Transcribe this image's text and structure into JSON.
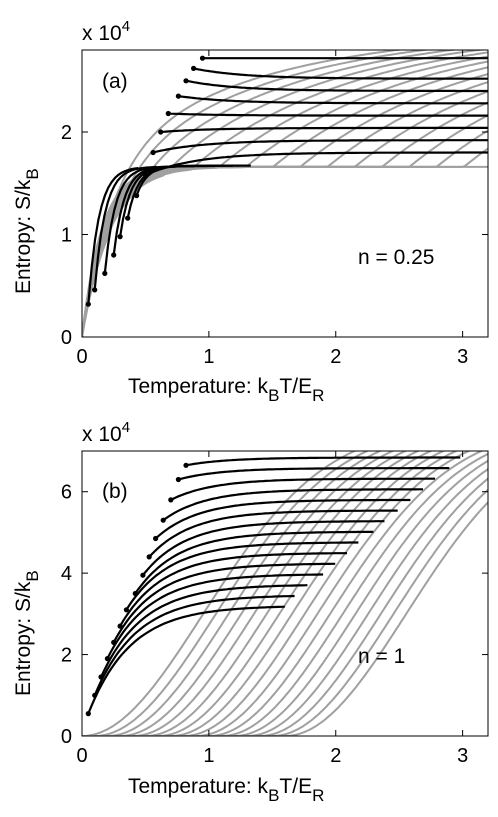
{
  "chart_data": [
    {
      "type": "line",
      "panel_label": "(a)",
      "annotation": "n = 0.25",
      "xlabel": "Temperature: k",
      "xlabel_sub1": "B",
      "xlabel_mid": "T/E",
      "xlabel_sub2": "R",
      "ylabel": "Entropy: S/k",
      "ylabel_sub": "B",
      "multiplier": "x 10",
      "multiplier_exp": "4",
      "xlim": [
        0,
        3.2
      ],
      "ylim": [
        0,
        2.8
      ],
      "xticks": [
        0,
        1,
        2,
        3
      ],
      "yticks": [
        0,
        1,
        2
      ],
      "gray_family": {
        "count": 16,
        "shift_step": 0.215,
        "form": "plateau-then-rise"
      },
      "black_family": {
        "count": 15,
        "start_points": [
          [
            0.05,
            0.32
          ],
          [
            0.1,
            0.46
          ],
          [
            0.18,
            0.62
          ],
          [
            0.25,
            0.8
          ],
          [
            0.3,
            0.98
          ],
          [
            0.36,
            1.16
          ],
          [
            0.43,
            1.38
          ],
          [
            0.5,
            1.58
          ],
          [
            0.56,
            1.8
          ],
          [
            0.62,
            2.0
          ],
          [
            0.68,
            2.18
          ],
          [
            0.76,
            2.35
          ],
          [
            0.82,
            2.5
          ],
          [
            0.88,
            2.62
          ],
          [
            0.95,
            2.72
          ]
        ]
      }
    },
    {
      "type": "line",
      "panel_label": "(b)",
      "annotation": "n = 1",
      "xlabel": "Temperature: k",
      "xlabel_sub1": "B",
      "xlabel_mid": "T/E",
      "xlabel_sub2": "R",
      "ylabel": "Entropy: S/k",
      "ylabel_sub": "B",
      "multiplier": "x 10",
      "multiplier_exp": "4",
      "xlim": [
        0,
        3.2
      ],
      "ylim": [
        0,
        7
      ],
      "xticks": [
        0,
        1,
        2,
        3
      ],
      "yticks": [
        0,
        2,
        4,
        6
      ],
      "gray_family": {
        "count": 17,
        "shift_step": 0.1,
        "form": "sigmoid-rise"
      },
      "black_family": {
        "count": 15,
        "start_points": [
          [
            0.05,
            0.55
          ],
          [
            0.1,
            1.0
          ],
          [
            0.15,
            1.45
          ],
          [
            0.2,
            1.9
          ],
          [
            0.25,
            2.3
          ],
          [
            0.3,
            2.7
          ],
          [
            0.35,
            3.1
          ],
          [
            0.42,
            3.5
          ],
          [
            0.48,
            3.95
          ],
          [
            0.53,
            4.4
          ],
          [
            0.58,
            4.85
          ],
          [
            0.64,
            5.3
          ],
          [
            0.7,
            5.8
          ],
          [
            0.76,
            6.3
          ],
          [
            0.82,
            6.65
          ]
        ]
      }
    }
  ]
}
